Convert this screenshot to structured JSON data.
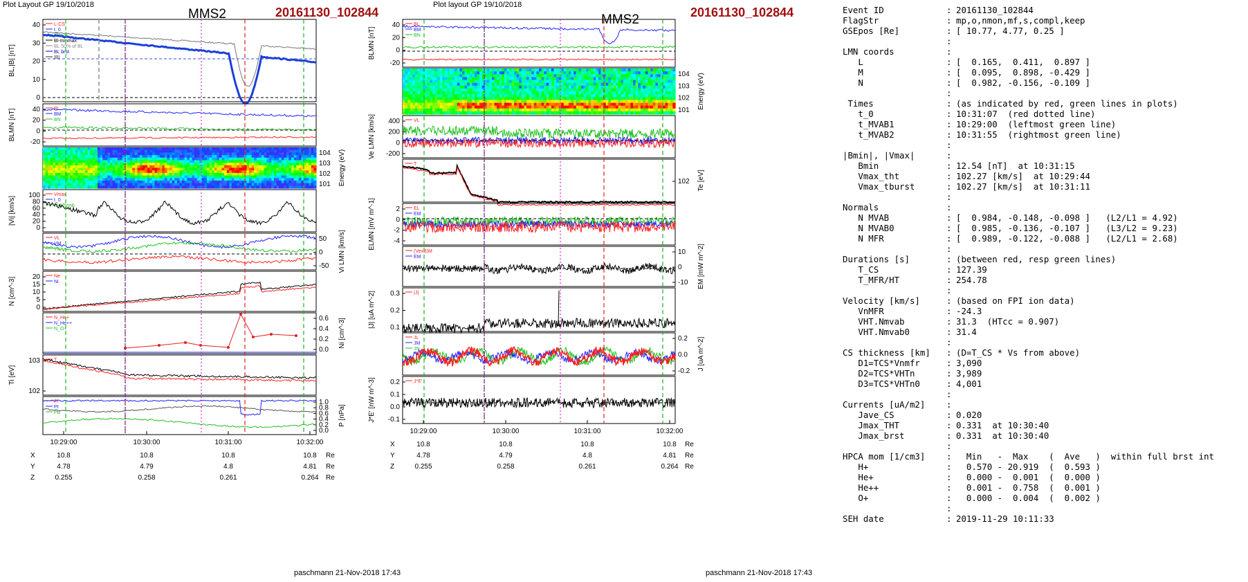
{
  "panelA": {
    "layout_label": "Plot Layout GP 19/10/2018",
    "spacecraft": "MMS2",
    "event": "20161130_102844",
    "footer": "paschmann 21-Nov-2018 17:43",
    "xticks": [
      "10:29:00",
      "10:30:00",
      "10:31:00",
      "10:32:00"
    ],
    "pos_rows": [
      {
        "label": "X",
        "vals": [
          "10.8",
          "10.8",
          "10.8",
          "10.8"
        ],
        "unit": "Re"
      },
      {
        "label": "Y",
        "vals": [
          "4.78",
          "4.79",
          "4.8",
          "4.81"
        ],
        "unit": "Re"
      },
      {
        "label": "Z",
        "vals": [
          "0.255",
          "0.258",
          "0.261",
          "0.264"
        ],
        "unit": "Re"
      }
    ],
    "panels": [
      {
        "ylabel": "BL,|B| [nT]",
        "ticks": [
          "40",
          "30",
          "20",
          "10",
          "0"
        ],
        "side": "left",
        "legend": [
          "L-CS",
          "t_0",
          "|B|avg",
          "Bl-minmax",
          "BL 50% of BL",
          "BL brst",
          "|B|"
        ]
      },
      {
        "ylabel": "BLMN [nT]",
        "ticks": [
          "40",
          "20",
          "0",
          "-20"
        ],
        "side": "left",
        "legend": [
          "BL",
          "BM",
          "BN"
        ]
      },
      {
        "ylabel": "Energy (eV)",
        "ticks": [
          "10^4",
          "10^3",
          "10^2",
          "10^1"
        ],
        "side": "right",
        "legend": []
      },
      {
        "ylabel": "|Vi| [km/s]",
        "ticks": [
          "100",
          "80",
          "60",
          "40",
          "20",
          "0"
        ],
        "side": "left",
        "legend": [
          "Vmax",
          "t_0",
          "N+Vhrmb"
        ]
      },
      {
        "ylabel": "Vi LMN [km/s]",
        "ticks": [
          "50",
          "0",
          "-50"
        ],
        "side": "right",
        "legend": [
          "VL",
          "VM",
          "VN"
        ]
      },
      {
        "ylabel": "N [cm^-3]",
        "ticks": [
          "20",
          "15",
          "10",
          "5",
          "0"
        ],
        "side": "left",
        "legend": [
          "Ne",
          "Ni"
        ]
      },
      {
        "ylabel": "Ni [cm^-3]",
        "ticks": [
          "0.6",
          "0.4",
          "0.2",
          "0.0"
        ],
        "side": "right",
        "legend": [
          "N_He+",
          "N_He++",
          "N_O+"
        ]
      },
      {
        "ylabel": "Ti [eV]",
        "ticks": [
          "10^3",
          "10^2"
        ],
        "side": "left",
        "legend": [
          "T"
        ]
      },
      {
        "ylabel": "P [nPa]",
        "ticks": [
          "1.0",
          "0.8",
          "0.6",
          "0.4",
          "0.2",
          "0.0"
        ],
        "side": "right",
        "legend": [
          "Pi",
          "Pt",
          "PB"
        ]
      }
    ]
  },
  "panelB": {
    "layout_label": "Plot layout GP 19/10/2018",
    "spacecraft": "MMS2",
    "event": "20161130_102844",
    "footer": "paschmann 21-Nov-2018 17:43",
    "xticks": [
      "10:29:00",
      "10:30:00",
      "10:31:00",
      "10:32:00"
    ],
    "pos_rows": [
      {
        "label": "X",
        "vals": [
          "10.8",
          "10.8",
          "10.8",
          "10.8"
        ],
        "unit": "Re"
      },
      {
        "label": "Y",
        "vals": [
          "4.78",
          "4.79",
          "4.8",
          "4.81"
        ],
        "unit": "Re"
      },
      {
        "label": "Z",
        "vals": [
          "0.255",
          "0.258",
          "0.261",
          "0.264"
        ],
        "unit": "Re"
      }
    ],
    "panels": [
      {
        "ylabel": "BLMN [nT]",
        "ticks": [
          "40",
          "20",
          "0",
          "-20"
        ],
        "side": "left",
        "legend": [
          "BL",
          "BM",
          "BN"
        ]
      },
      {
        "ylabel": "Energy (eV)",
        "ticks": [
          "10^4",
          "10^3",
          "10^2",
          "10^1"
        ],
        "side": "right",
        "legend": []
      },
      {
        "ylabel": "Ve LMN [km/s]",
        "ticks": [
          "400",
          "200",
          "0",
          "-200"
        ],
        "side": "left",
        "legend": [
          "VL"
        ]
      },
      {
        "ylabel": "Te [eV]",
        "ticks": [
          "10^2"
        ],
        "side": "right",
        "legend": [
          "T"
        ]
      },
      {
        "ylabel": "ELMN [mV m^-1]",
        "ticks": [
          "2",
          "0",
          "-2",
          "-4"
        ],
        "side": "left",
        "legend": [
          "EL",
          "EM",
          "EN"
        ]
      },
      {
        "ylabel": "EM [mW m^-2]",
        "ticks": [
          "10",
          "0",
          "-10"
        ],
        "side": "right",
        "legend": [
          "(VexB)M",
          "EM"
        ]
      },
      {
        "ylabel": "|J| [uA m^-2]",
        "ticks": [
          "0.3",
          "0.2",
          "0.1"
        ],
        "side": "left",
        "legend": [
          "|J|"
        ]
      },
      {
        "ylabel": "J [uA m^-2]",
        "ticks": [
          "0.2",
          "0.0",
          "-0.2"
        ],
        "side": "right",
        "legend": [
          "JL",
          "JM",
          "JN"
        ]
      },
      {
        "ylabel": "J*E' [nW m^-3]",
        "ticks": [
          "0.2",
          "0.1",
          "0.0",
          "-0.1"
        ],
        "side": "left",
        "legend": [
          "J*E'"
        ]
      }
    ]
  },
  "info": {
    "rows": [
      {
        "k": "Event ID",
        "v": "20161130_102844"
      },
      {
        "k": "FlagStr",
        "v": "mp,o,nmon,mf,s,compl,keep"
      },
      {
        "k": "GSEpos [Re]",
        "v": "[ 10.77, 4.77, 0.25 ]"
      },
      {
        "k": "",
        "v": ""
      },
      {
        "k": "LMN coords",
        "v": ""
      },
      {
        "k": "   L",
        "v": "[  0.165,  0.411,  0.897 ]"
      },
      {
        "k": "   M",
        "v": "[  0.095,  0.898, -0.429 ]"
      },
      {
        "k": "   N",
        "v": "[  0.982, -0.156, -0.109 ]"
      },
      {
        "k": "",
        "v": ""
      },
      {
        "k": " Times",
        "v": "(as indicated by red, green lines in plots)"
      },
      {
        "k": "   t_0",
        "v": "10:31:07  (red dotted line)"
      },
      {
        "k": "   t_MVAB1",
        "v": "10:29:00  (leftmost green line)"
      },
      {
        "k": "   t_MVAB2",
        "v": "10:31:55  (rightmost green line)"
      },
      {
        "k": "",
        "v": ""
      },
      {
        "k": "|Bmin|, |Vmax|",
        "v": ""
      },
      {
        "k": "   Bmin",
        "v": "12.54 [nT]  at 10:31:15"
      },
      {
        "k": "   Vmax_tht",
        "v": "102.27 [km/s]  at 10:29:44"
      },
      {
        "k": "   Vmax_tburst",
        "v": "102.27 [km/s]  at 10:31:11"
      },
      {
        "k": "",
        "v": ""
      },
      {
        "k": "Normals",
        "v": ""
      },
      {
        "k": "   N MVAB",
        "v": "[  0.984, -0.148, -0.098 ]   (L2/L1 = 4.92)"
      },
      {
        "k": "   N MVAB0",
        "v": "[  0.985, -0.136, -0.107 ]   (L3/L2 = 9.23)"
      },
      {
        "k": "   N MFR",
        "v": "[  0.989, -0.122, -0.088 ]   (L2/L1 = 2.68)"
      },
      {
        "k": "",
        "v": ""
      },
      {
        "k": "Durations [s]",
        "v": "(between red, resp green lines)"
      },
      {
        "k": "   T_CS",
        "v": "127.39"
      },
      {
        "k": "   T_MFR/HT",
        "v": "254.78"
      },
      {
        "k": "",
        "v": ""
      },
      {
        "k": "Velocity [km/s]",
        "v": "(based on FPI ion data)"
      },
      {
        "k": "   VnMFR",
        "v": "-24.3"
      },
      {
        "k": "   VHT.Nmvab",
        "v": "31.3  (HTcc = 0.907)"
      },
      {
        "k": "   VHT.Nmvab0",
        "v": "31.4"
      },
      {
        "k": "",
        "v": ""
      },
      {
        "k": "CS thickness [km]",
        "v": "(D=T_CS * Vs from above)"
      },
      {
        "k": "   D1=TCS*Vnmfr",
        "v": "3,090"
      },
      {
        "k": "   D2=TCS*VHTn",
        "v": "3,989"
      },
      {
        "k": "   D3=TCS*VHTn0",
        "v": "4,001"
      },
      {
        "k": "",
        "v": ""
      },
      {
        "k": "Currents [uA/m2]",
        "v": ""
      },
      {
        "k": "   Jave_CS",
        "v": "0.020"
      },
      {
        "k": "   Jmax_THT",
        "v": "0.331  at 10:30:40"
      },
      {
        "k": "   Jmax_brst",
        "v": "0.331  at 10:30:40"
      },
      {
        "k": "",
        "v": ""
      },
      {
        "k": "HPCA mom [1/cm3]",
        "v": "  Min   -  Max    (  Ave   )  within full brst int"
      },
      {
        "k": "   H+",
        "v": "  0.570 - 20.919  (  0.593 )"
      },
      {
        "k": "   He+",
        "v": "  0.000 -  0.001  (  0.000 )"
      },
      {
        "k": "   He++",
        "v": "  0.001 -  0.758  (  0.001 )"
      },
      {
        "k": "   O+",
        "v": "  0.000 -  0.004  (  0.002 )"
      },
      {
        "k": "",
        "v": ""
      },
      {
        "k": "SEH date",
        "v": "2019-11-29 10:11:33"
      }
    ]
  },
  "chart_data": [
    {
      "type": "line",
      "title": "MMS2 20161130_102844",
      "x_range": [
        "10:28:40",
        "10:32:05"
      ],
      "markers": {
        "t_0": "10:31:07",
        "t_MVAB1": "10:29:00",
        "t_MVAB2": "10:31:55"
      },
      "series": [
        {
          "name": "|B|",
          "x": [
            "10:28:40",
            "10:29:30",
            "10:30:00",
            "10:30:40",
            "10:31:00",
            "10:31:15",
            "10:31:30",
            "10:32:00"
          ],
          "values": [
            40,
            40,
            39,
            36,
            34,
            13,
            30,
            33
          ]
        },
        {
          "name": "BL",
          "x": [
            "10:28:40",
            "10:29:30",
            "10:30:00",
            "10:30:40",
            "10:31:00",
            "10:31:15",
            "10:31:30",
            "10:32:00"
          ],
          "values": [
            38,
            38,
            34,
            30,
            27,
            7,
            25,
            23
          ]
        },
        {
          "name": "Ne",
          "x": [
            "10:28:40",
            "10:29:30",
            "10:30:00",
            "10:30:40",
            "10:31:00",
            "10:31:15",
            "10:31:30",
            "10:32:00"
          ],
          "values": [
            0.5,
            1,
            6,
            11,
            15,
            20,
            16,
            15
          ]
        },
        {
          "name": "N_He++",
          "x": [
            "10:30:00",
            "10:30:15",
            "10:30:30",
            "10:30:45",
            "10:31:00",
            "10:31:10",
            "10:31:25",
            "10:31:45"
          ],
          "values": [
            0.1,
            0.15,
            0.18,
            0.2,
            0.1,
            0.65,
            0.3,
            0.28
          ]
        }
      ]
    },
    {
      "type": "line",
      "title": "MMS2 20161130_102844",
      "x_range": [
        "10:28:40",
        "10:32:05"
      ],
      "series": [
        {
          "name": "|J|",
          "x": [
            "10:28:40",
            "10:29:30",
            "10:30:00",
            "10:30:40",
            "10:31:00",
            "10:31:30",
            "10:32:00"
          ],
          "values": [
            0.02,
            0.03,
            0.08,
            0.33,
            0.12,
            0.1,
            0.09
          ]
        }
      ]
    }
  ]
}
